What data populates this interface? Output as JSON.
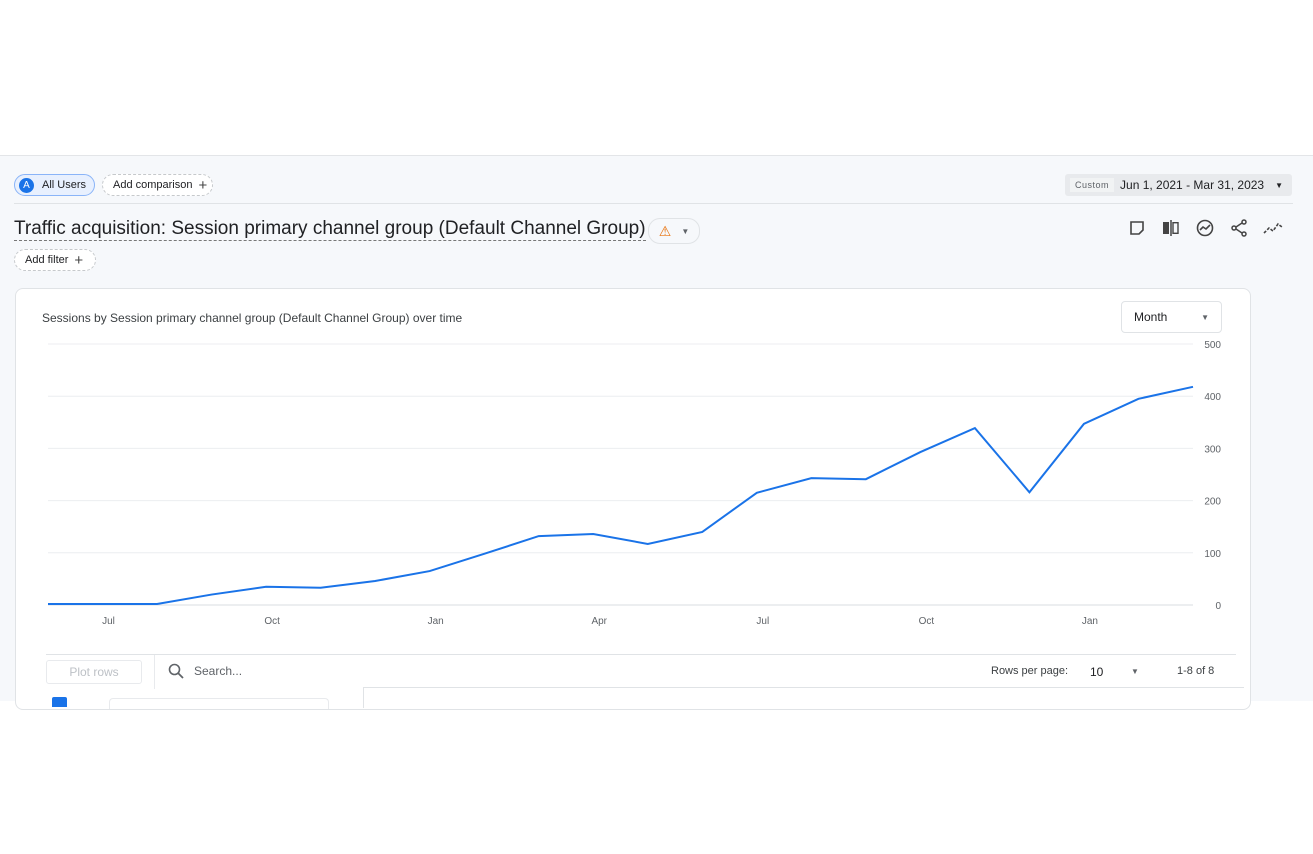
{
  "segment": {
    "avatar": "A",
    "label": "All Users"
  },
  "add_comparison": "Add comparison",
  "date": {
    "preset": "Custom",
    "range": "Jun 1, 2021 - Mar 31, 2023"
  },
  "title": "Traffic acquisition: Session primary channel group (Default Channel Group)",
  "add_filter": "Add filter",
  "tools": [
    "notes-icon",
    "compare-icon",
    "insights-icon",
    "share-icon",
    "trend-icon"
  ],
  "card": {
    "title": "Sessions by Session primary channel group (Default Channel Group) over time",
    "granularity": "Month"
  },
  "chart_data": {
    "type": "line",
    "x": [
      "Jun 2021",
      "Jul 2021",
      "Aug 2021",
      "Sep 2021",
      "Oct 2021",
      "Nov 2021",
      "Dec 2021",
      "Jan 2022",
      "Feb 2022",
      "Mar 2022",
      "Apr 2022",
      "May 2022",
      "Jun 2022",
      "Jul 2022",
      "Aug 2022",
      "Sep 2022",
      "Oct 2022",
      "Nov 2022",
      "Dec 2022",
      "Jan 2023",
      "Feb 2023",
      "Mar 2023"
    ],
    "series": [
      {
        "values": [
          2,
          2,
          2,
          20,
          35,
          33,
          46,
          65,
          98,
          132,
          136,
          117,
          140,
          215,
          243,
          241,
          293,
          339,
          216,
          347,
          395,
          418
        ],
        "color": "#1a73e8"
      }
    ],
    "xticks": [
      {
        "at": "Jul 2021",
        "label": "Jul"
      },
      {
        "at": "Oct 2021",
        "label": "Oct"
      },
      {
        "at": "Jan 2022",
        "label": "Jan"
      },
      {
        "at": "Apr 2022",
        "label": "Apr"
      },
      {
        "at": "Jul 2022",
        "label": "Jul"
      },
      {
        "at": "Oct 2022",
        "label": "Oct"
      },
      {
        "at": "Jan 2023",
        "label": "Jan"
      }
    ],
    "yticks": [
      "0",
      "100",
      "200",
      "300",
      "400",
      "500"
    ],
    "ylim": [
      0,
      500
    ],
    "grid": true,
    "yaxis_side": "right"
  },
  "table": {
    "plot_rows": "Plot rows",
    "search_placeholder": "Search...",
    "rows_per_page_label": "Rows per page:",
    "rows_per_page": "10",
    "range": "1-8 of 8"
  }
}
